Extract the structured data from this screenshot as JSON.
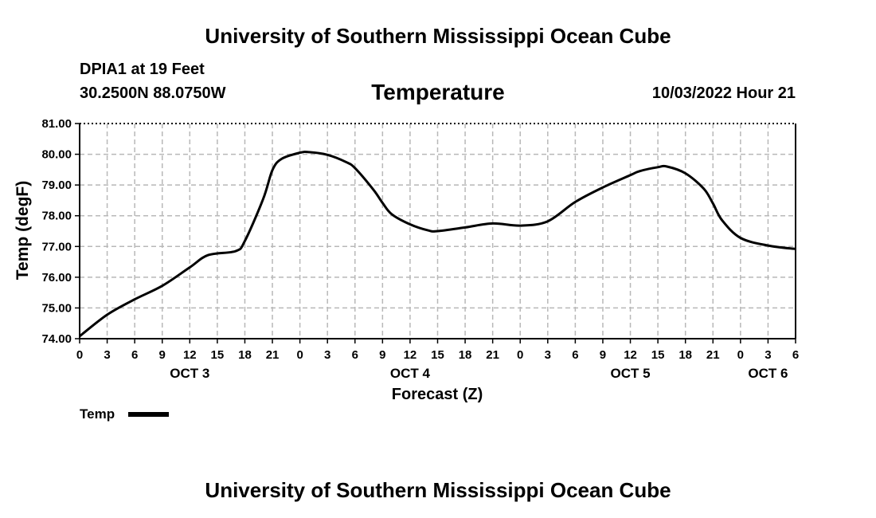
{
  "header": {
    "title": "University of Southern Mississippi Ocean Cube",
    "station": "DPIA1 at 19 Feet",
    "coords": "30.2500N  88.0750W",
    "parameter": "Temperature",
    "datetime": "10/03/2022 Hour 21"
  },
  "footer": {
    "title": "University of Southern Mississippi Ocean Cube"
  },
  "colors": {
    "line": "#000000",
    "grid": "#b8b8b8",
    "background": "#ffffff"
  },
  "chart_data": {
    "type": "line",
    "title": "Temperature",
    "ylabel": "Temp (degF)",
    "xlabel": "Forecast (Z)",
    "ylim": [
      74.0,
      81.0
    ],
    "yticks": [
      "74.00",
      "75.00",
      "76.00",
      "77.00",
      "78.00",
      "79.00",
      "80.00",
      "81.00"
    ],
    "x_range_hours": [
      0,
      78
    ],
    "xtick_hours": [
      0,
      3,
      6,
      9,
      12,
      15,
      18,
      21,
      24,
      27,
      30,
      33,
      36,
      39,
      42,
      45,
      48,
      51,
      54,
      57,
      60,
      63,
      66,
      69,
      72,
      75,
      78
    ],
    "xtick_labels": [
      "0",
      "3",
      "6",
      "9",
      "12",
      "15",
      "18",
      "21",
      "0",
      "3",
      "6",
      "9",
      "12",
      "15",
      "18",
      "21",
      "0",
      "3",
      "6",
      "9",
      "12",
      "15",
      "18",
      "21",
      "0",
      "3",
      "6"
    ],
    "date_labels": [
      {
        "label": "OCT 3",
        "hour": 12
      },
      {
        "label": "OCT 4",
        "hour": 36
      },
      {
        "label": "OCT 5",
        "hour": 60
      },
      {
        "label": "OCT 6",
        "hour": 75
      }
    ],
    "grid": true,
    "legend": {
      "position": "bottom-left",
      "label": "Temp"
    },
    "series": [
      {
        "name": "Temp",
        "x": [
          0,
          3,
          6,
          9,
          12,
          14,
          17,
          18,
          20,
          21,
          22,
          24,
          25,
          27,
          29,
          30,
          32,
          33,
          34,
          36,
          38,
          39,
          42,
          45,
          48,
          51,
          54,
          57,
          60,
          61,
          63,
          64,
          66,
          68,
          69,
          70,
          72,
          75,
          78
        ],
        "y": [
          74.08,
          74.78,
          75.28,
          75.72,
          76.32,
          76.72,
          76.85,
          77.18,
          78.55,
          79.48,
          79.85,
          80.05,
          80.07,
          79.98,
          79.75,
          79.55,
          78.85,
          78.42,
          78.05,
          77.72,
          77.52,
          77.5,
          77.62,
          77.75,
          77.68,
          77.82,
          78.45,
          78.92,
          79.32,
          79.45,
          79.58,
          79.6,
          79.38,
          78.88,
          78.4,
          77.85,
          77.28,
          77.03,
          76.92
        ]
      }
    ]
  }
}
